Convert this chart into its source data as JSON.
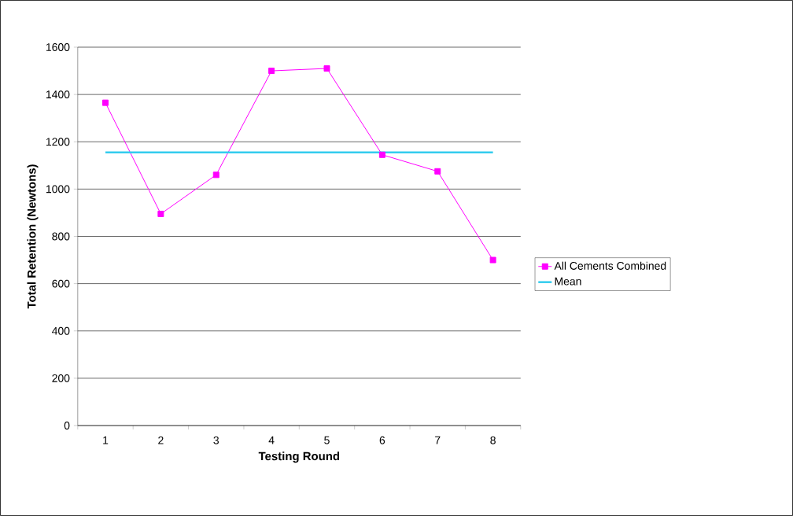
{
  "chart_data": {
    "type": "line",
    "xlabel": "Testing Round",
    "ylabel": "Total Retention (Newtons)",
    "categories": [
      "1",
      "2",
      "3",
      "4",
      "5",
      "6",
      "7",
      "8"
    ],
    "series": [
      {
        "name": "All Cements Combined",
        "color": "#ff00ff",
        "marker": "square",
        "values": [
          1365,
          895,
          1060,
          1500,
          1510,
          1145,
          1075,
          700
        ]
      },
      {
        "name": "Mean",
        "color": "#33ccee",
        "marker": "none",
        "values": [
          1155,
          1155,
          1155,
          1155,
          1155,
          1155,
          1155,
          1155
        ]
      }
    ],
    "ylim": [
      0,
      1600
    ],
    "yticks": [
      0,
      200,
      400,
      600,
      800,
      1000,
      1200,
      1400,
      1600
    ],
    "grid": "y",
    "legend": "right"
  }
}
